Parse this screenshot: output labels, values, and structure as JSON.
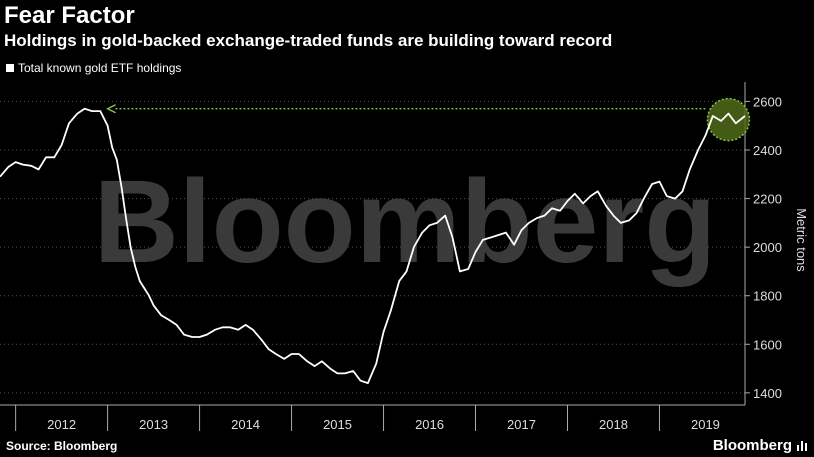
{
  "header": {
    "title": "Fear Factor",
    "subtitle": "Holdings in gold-backed exchange-traded funds are building toward record"
  },
  "legend": {
    "label": "Total known gold ETF holdings"
  },
  "footer": {
    "source": "Source: Bloomberg",
    "brand": "Bloomberg"
  },
  "watermark": "Bloomberg",
  "colors": {
    "background": "#000000",
    "line": "#ffffff",
    "highlight": "#8bc34a",
    "watermark": "#3a3a3a"
  },
  "chart_data": {
    "type": "line",
    "title": "Fear Factor",
    "subtitle": "Holdings in gold-backed exchange-traded funds are building toward record",
    "xlabel": "",
    "ylabel": "Metric tons",
    "ylim": [
      1350,
      2680
    ],
    "xlim": [
      2011.83,
      2019.93
    ],
    "yticks": [
      1400,
      1600,
      1800,
      2000,
      2200,
      2400,
      2600
    ],
    "xticks": [
      "2012",
      "2013",
      "2014",
      "2015",
      "2016",
      "2017",
      "2018",
      "2019"
    ],
    "grid": "horizontal dotted",
    "legend_position": "top-left",
    "annotations": [
      {
        "type": "arrow",
        "from": [
          2019.5,
          2570
        ],
        "to": [
          2013.0,
          2570
        ],
        "style": "dotted-green"
      },
      {
        "type": "circle",
        "center": [
          2019.75,
          2525
        ],
        "style": "green-highlight"
      }
    ],
    "series": [
      {
        "name": "Total known gold ETF holdings",
        "x": [
          2011.83,
          2011.92,
          2012.0,
          2012.08,
          2012.17,
          2012.25,
          2012.33,
          2012.42,
          2012.5,
          2012.58,
          2012.67,
          2012.75,
          2012.83,
          2012.92,
          2013.0,
          2013.05,
          2013.1,
          2013.15,
          2013.2,
          2013.25,
          2013.3,
          2013.35,
          2013.4,
          2013.45,
          2013.5,
          2013.58,
          2013.67,
          2013.75,
          2013.83,
          2013.92,
          2014.0,
          2014.08,
          2014.17,
          2014.25,
          2014.33,
          2014.42,
          2014.5,
          2014.58,
          2014.67,
          2014.75,
          2014.83,
          2014.92,
          2015.0,
          2015.08,
          2015.17,
          2015.25,
          2015.33,
          2015.42,
          2015.5,
          2015.58,
          2015.67,
          2015.75,
          2015.83,
          2015.92,
          2016.0,
          2016.08,
          2016.17,
          2016.25,
          2016.33,
          2016.42,
          2016.5,
          2016.58,
          2016.67,
          2016.75,
          2016.83,
          2016.92,
          2017.0,
          2017.08,
          2017.17,
          2017.25,
          2017.33,
          2017.42,
          2017.5,
          2017.58,
          2017.67,
          2017.75,
          2017.83,
          2017.92,
          2018.0,
          2018.08,
          2018.17,
          2018.25,
          2018.33,
          2018.42,
          2018.5,
          2018.58,
          2018.67,
          2018.75,
          2018.83,
          2018.92,
          2019.0,
          2019.08,
          2019.17,
          2019.25,
          2019.33,
          2019.42,
          2019.5,
          2019.58,
          2019.67,
          2019.75,
          2019.83,
          2019.93
        ],
        "values": [
          2290,
          2330,
          2350,
          2340,
          2335,
          2320,
          2370,
          2370,
          2420,
          2510,
          2550,
          2570,
          2560,
          2560,
          2500,
          2410,
          2360,
          2250,
          2120,
          2000,
          1920,
          1860,
          1830,
          1800,
          1760,
          1720,
          1700,
          1680,
          1640,
          1630,
          1630,
          1640,
          1660,
          1670,
          1670,
          1660,
          1680,
          1660,
          1620,
          1580,
          1560,
          1540,
          1560,
          1560,
          1530,
          1510,
          1530,
          1500,
          1480,
          1480,
          1490,
          1450,
          1440,
          1520,
          1650,
          1740,
          1860,
          1900,
          2000,
          2060,
          2090,
          2100,
          2130,
          2040,
          1900,
          1910,
          1980,
          2030,
          2040,
          2050,
          2060,
          2010,
          2070,
          2100,
          2120,
          2130,
          2160,
          2150,
          2190,
          2220,
          2180,
          2210,
          2230,
          2170,
          2130,
          2100,
          2110,
          2140,
          2200,
          2260,
          2270,
          2210,
          2200,
          2230,
          2320,
          2400,
          2460,
          2540,
          2520,
          2550,
          2510,
          2540
        ]
      }
    ]
  }
}
